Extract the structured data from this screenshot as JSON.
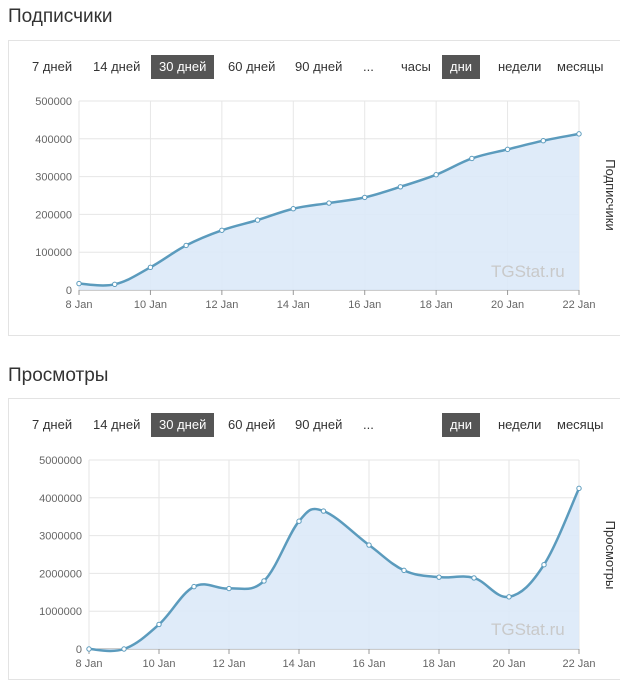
{
  "subscribers_section": {
    "title": "Подписчики",
    "range_buttons": [
      "7 дней",
      "14 дней",
      "30 дней",
      "60 дней",
      "90 дней",
      "..."
    ],
    "active_range": "30 дней",
    "granularity_buttons": [
      "часы",
      "дни",
      "недели",
      "месяцы"
    ],
    "active_granularity": "дни"
  },
  "views_section": {
    "title": "Просмотры",
    "range_buttons": [
      "7 дней",
      "14 дней",
      "30 дней",
      "60 дней",
      "90 дней",
      "..."
    ],
    "active_range": "30 дней",
    "granularity_buttons": [
      "дни",
      "недели",
      "месяцы"
    ],
    "active_granularity": "дни"
  },
  "colors": {
    "line": "#5b9bbd",
    "area": "#dbe9f8",
    "grid": "#e6e6e6",
    "active_button": "#555555"
  },
  "chart_data": [
    {
      "type": "area",
      "title": "Подписчики",
      "ylabel": "Подписчики",
      "watermark": "TGStat.ru",
      "x": [
        "8 Jan",
        "9 Jan",
        "10 Jan",
        "11 Jan",
        "12 Jan",
        "13 Jan",
        "14 Jan",
        "15 Jan",
        "16 Jan",
        "17 Jan",
        "18 Jan",
        "19 Jan",
        "20 Jan",
        "21 Jan",
        "22 Jan"
      ],
      "xticks": [
        "8 Jan",
        "10 Jan",
        "12 Jan",
        "14 Jan",
        "16 Jan",
        "18 Jan",
        "20 Jan",
        "22 Jan"
      ],
      "values": [
        17000,
        15000,
        60000,
        118000,
        158000,
        185000,
        215000,
        230000,
        245000,
        273000,
        305000,
        348000,
        372000,
        395000,
        413000
      ],
      "ylim": [
        0,
        500000
      ],
      "yticks": [
        "0",
        "100000",
        "200000",
        "300000",
        "400000",
        "500000"
      ],
      "grid": true
    },
    {
      "type": "area",
      "title": "Просмотры",
      "ylabel": "Просмотры",
      "watermark": "TGStat.ru",
      "x": [
        "8 Jan",
        "9 Jan",
        "10 Jan",
        "11 Jan",
        "12 Jan",
        "13 Jan",
        "14 Jan",
        "14.7 Jan",
        "16 Jan",
        "17 Jan",
        "18 Jan",
        "19 Jan",
        "20 Jan",
        "21 Jan",
        "22 Jan"
      ],
      "xticks": [
        "8 Jan",
        "10 Jan",
        "12 Jan",
        "14 Jan",
        "16 Jan",
        "18 Jan",
        "20 Jan",
        "22 Jan"
      ],
      "values": [
        0,
        0,
        650000,
        1650000,
        1600000,
        1800000,
        3380000,
        3650000,
        2750000,
        2080000,
        1900000,
        1880000,
        1380000,
        2230000,
        4250000
      ],
      "ylim": [
        0,
        5000000
      ],
      "yticks": [
        "0",
        "1000000",
        "2000000",
        "3000000",
        "4000000",
        "5000000"
      ],
      "grid": true
    }
  ]
}
